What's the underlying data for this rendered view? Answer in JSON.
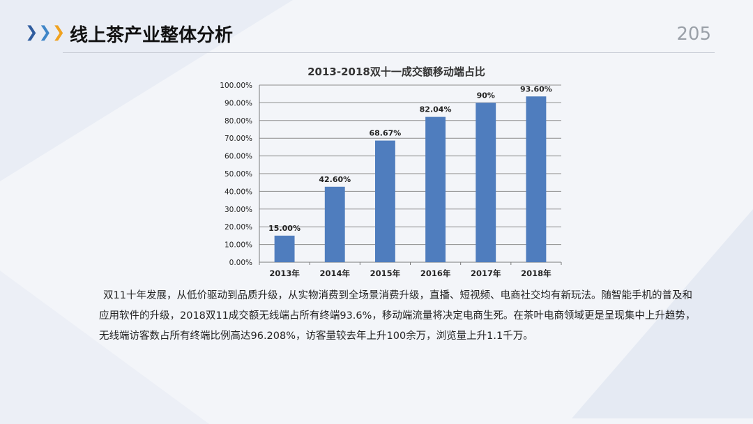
{
  "header": {
    "title": "线上茶产业整体分析",
    "page_number": "205",
    "chevron_colors": [
      "#2f5c9e",
      "#3f86c8",
      "#f0a21f"
    ]
  },
  "chart_data": {
    "type": "bar",
    "title": "2013-2018双十一成交额移动端占比",
    "categories": [
      "2013年",
      "2014年",
      "2015年",
      "2016年",
      "2017年",
      "2018年"
    ],
    "values": [
      15.0,
      42.6,
      68.67,
      82.04,
      90,
      93.6
    ],
    "data_labels": [
      "15.00%",
      "42.60%",
      "68.67%",
      "82.04%",
      "90%",
      "93.60%"
    ],
    "ylim": [
      0,
      100
    ],
    "yticks": [
      "0.00%",
      "10.00%",
      "20.00%",
      "30.00%",
      "40.00%",
      "50.00%",
      "60.00%",
      "70.00%",
      "80.00%",
      "90.00%",
      "100.00%"
    ],
    "grid": true,
    "bar_color": "#4f7dbe"
  },
  "description": "双11十年发展，从低价驱动到品质升级，从实物消费到全场景消费升级，直播、短视频、电商社交均有新玩法。随智能手机的普及和应用软件的升级，2018双11成交额无线端占所有终端93.6%，移动端流量将决定电商生死。在茶叶电商领域更是呈现集中上升趋势，无线端访客数占所有终端比例高达96.208%，访客量较去年上升100余万，浏览量上升1.1千万。"
}
